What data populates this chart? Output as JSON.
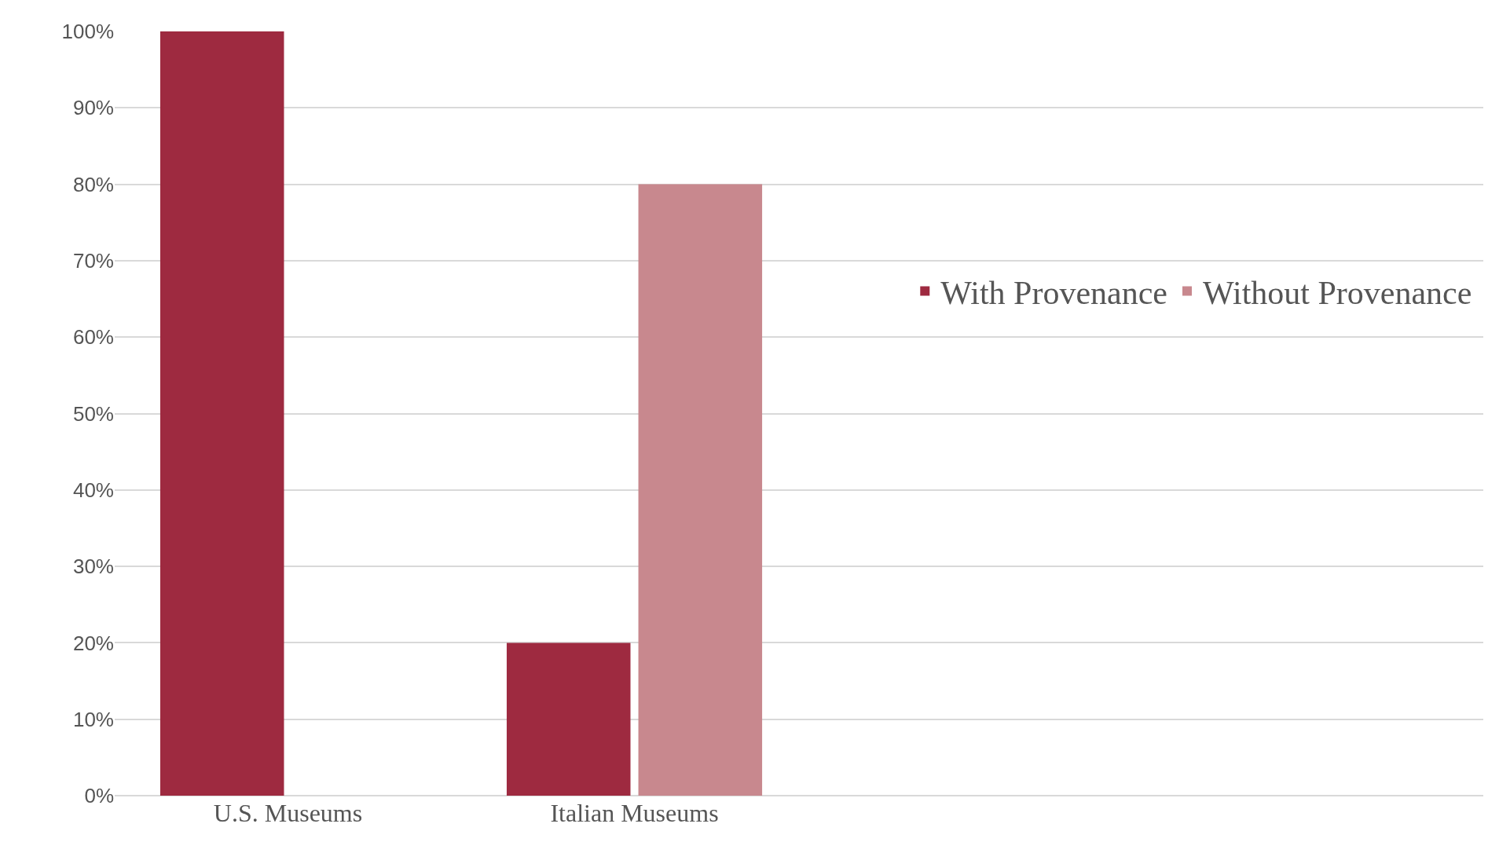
{
  "chart_data": {
    "type": "bar",
    "categories": [
      "U.S. Museums",
      "Italian Museums"
    ],
    "series": [
      {
        "name": "With Provenance",
        "color": "#9e2a40",
        "values": [
          100,
          20
        ]
      },
      {
        "name": "Without Provenance",
        "color": "#c8888e",
        "values": [
          0,
          80
        ]
      }
    ],
    "ylim": [
      0,
      100
    ],
    "yticks": [
      {
        "value": 0,
        "label": "0%"
      },
      {
        "value": 10,
        "label": "10%"
      },
      {
        "value": 20,
        "label": "20%"
      },
      {
        "value": 30,
        "label": "30%"
      },
      {
        "value": 40,
        "label": "40%"
      },
      {
        "value": 50,
        "label": "50%"
      },
      {
        "value": 60,
        "label": "60%"
      },
      {
        "value": 70,
        "label": "70%"
      },
      {
        "value": 80,
        "label": "80%"
      },
      {
        "value": 90,
        "label": "90%"
      },
      {
        "value": 100,
        "label": "100%"
      }
    ],
    "grid": "y",
    "legend": "right"
  }
}
